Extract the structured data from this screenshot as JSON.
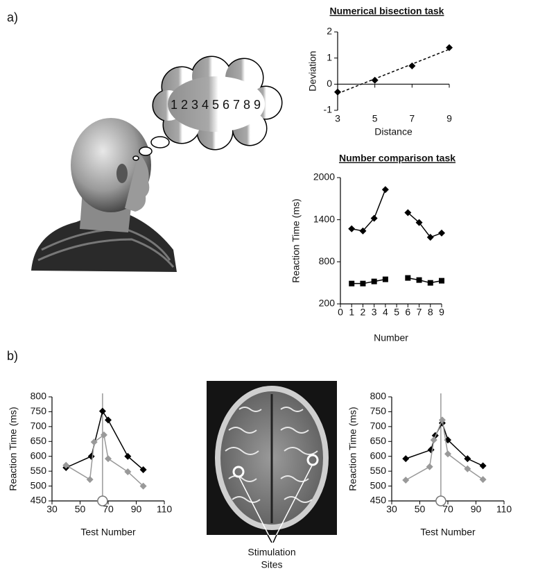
{
  "panel_labels": [
    "a)",
    "b)"
  ],
  "thought": "1 2 3 4 5 6 7 8 9",
  "annotation": [
    "Stimulation",
    "Sites"
  ],
  "chart_data": [
    {
      "type": "scatter",
      "title": "Numerical bisection task",
      "xlabel": "Distance",
      "ylabel": "Deviation",
      "x": [
        3,
        5,
        7,
        9
      ],
      "values": [
        -0.3,
        0.15,
        0.7,
        1.4
      ],
      "color": "#000000",
      "marker": "diamond",
      "trendline": true,
      "xlim": [
        3,
        9
      ],
      "xticks": [
        3,
        5,
        7,
        9
      ],
      "ylim": [
        -1,
        2
      ],
      "yticks": [
        -1,
        0,
        1,
        2
      ]
    },
    {
      "type": "line",
      "title": "Number comparison task",
      "xlabel": "Number",
      "ylabel": "Reaction Time (ms)",
      "x": [
        1,
        2,
        3,
        4,
        5,
        6,
        7,
        8,
        9
      ],
      "series": [
        {
          "color": "#000000",
          "marker": "diamond",
          "values": [
            1270,
            1240,
            1420,
            1830,
            null,
            1500,
            1360,
            1150,
            1210
          ]
        },
        {
          "color": "#000000",
          "marker": "square",
          "values": [
            490,
            490,
            520,
            550,
            null,
            570,
            540,
            500,
            530
          ]
        }
      ],
      "xlim": [
        0,
        9
      ],
      "xticks": [
        0,
        1,
        2,
        3,
        4,
        5,
        6,
        7,
        8,
        9
      ],
      "ylim": [
        200,
        2000
      ],
      "yticks": [
        200,
        800,
        1400,
        2000
      ]
    },
    {
      "type": "line",
      "xlabel": "Test Number",
      "ylabel": "Reaction Time (ms)",
      "vline": 66,
      "series": [
        {
          "color": "#000000",
          "marker": "diamond",
          "x": [
            40,
            58,
            66,
            70,
            84,
            95
          ],
          "values": [
            562,
            600,
            752,
            722,
            600,
            555
          ]
        },
        {
          "color": "#999999",
          "marker": "diamond",
          "x": [
            40,
            57,
            60,
            67,
            70,
            84,
            95
          ],
          "values": [
            570,
            522,
            648,
            672,
            592,
            548,
            500
          ]
        }
      ],
      "xlim": [
        30,
        110
      ],
      "xticks": [
        30,
        50,
        70,
        90,
        110
      ],
      "ylim": [
        450,
        800
      ],
      "yticks": [
        450,
        500,
        550,
        600,
        650,
        700,
        750,
        800
      ]
    },
    {
      "type": "line",
      "xlabel": "Test Number",
      "ylabel": "Reaction Time (ms)",
      "vline": 65,
      "series": [
        {
          "color": "#000000",
          "marker": "diamond",
          "x": [
            40,
            58,
            61,
            66,
            70,
            84,
            95
          ],
          "values": [
            592,
            622,
            670,
            712,
            655,
            592,
            568
          ]
        },
        {
          "color": "#999999",
          "marker": "diamond",
          "x": [
            40,
            57,
            60,
            66,
            70,
            84,
            95
          ],
          "values": [
            520,
            565,
            655,
            722,
            608,
            558,
            522
          ]
        }
      ],
      "xlim": [
        30,
        110
      ],
      "xticks": [
        30,
        50,
        70,
        90,
        110
      ],
      "ylim": [
        450,
        800
      ],
      "yticks": [
        450,
        500,
        550,
        600,
        650,
        700,
        750,
        800
      ]
    }
  ]
}
